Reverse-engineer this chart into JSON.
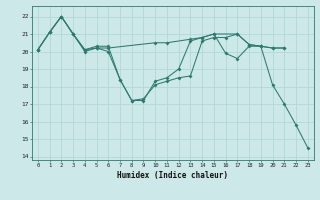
{
  "line1_x": [
    0,
    1,
    2,
    3,
    4,
    5,
    6,
    10,
    11,
    13,
    14,
    15,
    17,
    18,
    19,
    20,
    21
  ],
  "line1_y": [
    20.1,
    21.1,
    22.0,
    21.0,
    20.1,
    20.2,
    20.2,
    20.5,
    20.5,
    20.7,
    20.8,
    21.0,
    21.0,
    20.4,
    20.3,
    20.2,
    20.2
  ],
  "line2_x": [
    0,
    1,
    2,
    3,
    4,
    5,
    6,
    7,
    8,
    9,
    10,
    11,
    12,
    13,
    14,
    15,
    16,
    17,
    18,
    19,
    20,
    21
  ],
  "line2_y": [
    20.1,
    21.1,
    22.0,
    21.0,
    20.1,
    20.3,
    20.3,
    18.4,
    17.2,
    17.3,
    18.1,
    18.3,
    18.5,
    18.6,
    20.6,
    20.8,
    20.8,
    21.0,
    20.4,
    20.3,
    20.2,
    20.2
  ],
  "line3_x": [
    0,
    1,
    2,
    3,
    4,
    5,
    6,
    7,
    8,
    9,
    10,
    11,
    12,
    13,
    14,
    15,
    16,
    17,
    18,
    19,
    20,
    21,
    22,
    23
  ],
  "line3_y": [
    20.1,
    21.1,
    22.0,
    21.0,
    20.0,
    20.2,
    20.0,
    18.4,
    17.2,
    17.2,
    18.3,
    18.5,
    19.0,
    20.6,
    20.8,
    21.0,
    19.9,
    19.6,
    20.3,
    20.3,
    18.1,
    17.0,
    15.8,
    14.5
  ],
  "color": "#2d7a6e",
  "bg_color": "#cde8e8",
  "grid_color": "#b0d8d8",
  "xlabel": "Humidex (Indice chaleur)",
  "xlim": [
    -0.5,
    23.5
  ],
  "ylim": [
    13.8,
    22.6
  ],
  "yticks": [
    14,
    15,
    16,
    17,
    18,
    19,
    20,
    21,
    22
  ],
  "xticks": [
    0,
    1,
    2,
    3,
    4,
    5,
    6,
    7,
    8,
    9,
    10,
    11,
    12,
    13,
    14,
    15,
    16,
    17,
    18,
    19,
    20,
    21,
    22,
    23
  ]
}
